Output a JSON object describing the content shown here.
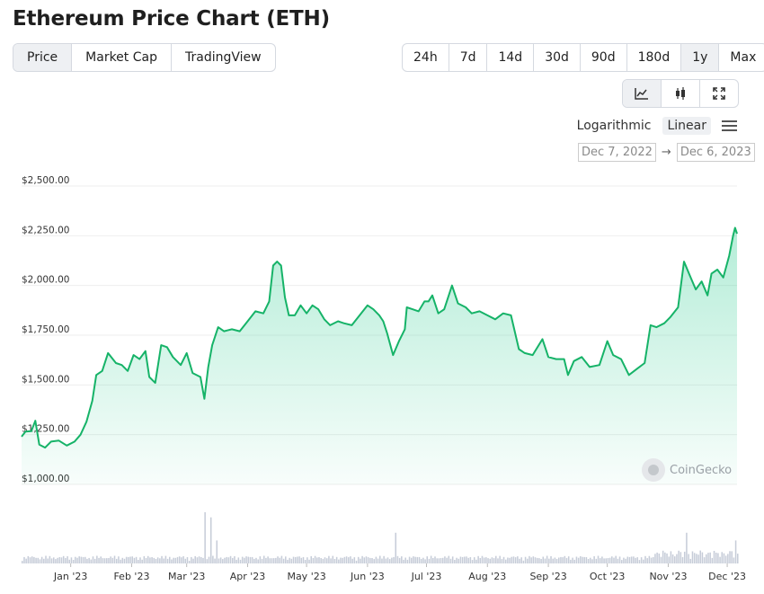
{
  "header": {
    "title": "Ethereum Price Chart (ETH)"
  },
  "view_tabs": [
    {
      "label": "Price",
      "active": true
    },
    {
      "label": "Market Cap",
      "active": false
    },
    {
      "label": "TradingView",
      "active": false
    }
  ],
  "range_tabs": [
    {
      "label": "24h",
      "active": false
    },
    {
      "label": "7d",
      "active": false
    },
    {
      "label": "14d",
      "active": false
    },
    {
      "label": "30d",
      "active": false
    },
    {
      "label": "90d",
      "active": false
    },
    {
      "label": "180d",
      "active": false
    },
    {
      "label": "1y",
      "active": true
    },
    {
      "label": "Max",
      "active": false
    }
  ],
  "chart_type_buttons": [
    {
      "icon": "line-chart-icon",
      "active": true
    },
    {
      "icon": "candlestick-icon",
      "active": false
    },
    {
      "icon": "fullscreen-icon",
      "active": false
    }
  ],
  "scale": {
    "logarithmic_label": "Logarithmic",
    "linear_label": "Linear",
    "selected": "Linear",
    "menu_icon": "hamburger-menu-icon"
  },
  "date_range": {
    "start": "Dec 7, 2022",
    "arrow": "→",
    "end": "Dec 6, 2023"
  },
  "watermark": {
    "text": "CoinGecko",
    "icon": "coingecko-logo-icon"
  },
  "colors": {
    "line": "#16b368",
    "fill": "#16c784",
    "volume": "#c6ccd8",
    "grid": "#eeeeee",
    "active_tab": "#eef0f3"
  },
  "chart_data": {
    "type": "area",
    "title": "",
    "xlabel": "",
    "ylabel": "",
    "ylim": [
      1000,
      2500
    ],
    "yticks": [
      {
        "value": 1000,
        "label": "$1,000.00"
      },
      {
        "value": 1250,
        "label": "$1,250.00"
      },
      {
        "value": 1500,
        "label": "$1,500.00"
      },
      {
        "value": 1750,
        "label": "$1,750.00"
      },
      {
        "value": 2000,
        "label": "$2,000.00"
      },
      {
        "value": 2250,
        "label": "$2,250.00"
      },
      {
        "value": 2500,
        "label": "$2,500.00"
      }
    ],
    "xlim": [
      "2022-12-07",
      "2023-12-06"
    ],
    "xticks": [
      {
        "date": "2023-01-01",
        "label": "Jan '23"
      },
      {
        "date": "2023-02-01",
        "label": "Feb '23"
      },
      {
        "date": "2023-03-01",
        "label": "Mar '23"
      },
      {
        "date": "2023-04-01",
        "label": "Apr '23"
      },
      {
        "date": "2023-05-01",
        "label": "May '23"
      },
      {
        "date": "2023-06-01",
        "label": "Jun '23"
      },
      {
        "date": "2023-07-01",
        "label": "Jul '23"
      },
      {
        "date": "2023-08-01",
        "label": "Aug '23"
      },
      {
        "date": "2023-09-01",
        "label": "Sep '23"
      },
      {
        "date": "2023-10-01",
        "label": "Oct '23"
      },
      {
        "date": "2023-11-01",
        "label": "Nov '23"
      },
      {
        "date": "2023-12-01",
        "label": "Dec '23"
      }
    ],
    "grid": true,
    "series": [
      {
        "values": [
          {
            "date": "2022-12-07",
            "price": 1240
          },
          {
            "date": "2022-12-09",
            "price": 1265
          },
          {
            "date": "2022-12-12",
            "price": 1268
          },
          {
            "date": "2022-12-14",
            "price": 1320
          },
          {
            "date": "2022-12-16",
            "price": 1200
          },
          {
            "date": "2022-12-19",
            "price": 1185
          },
          {
            "date": "2022-12-22",
            "price": 1215
          },
          {
            "date": "2022-12-26",
            "price": 1220
          },
          {
            "date": "2022-12-30",
            "price": 1195
          },
          {
            "date": "2023-01-03",
            "price": 1215
          },
          {
            "date": "2023-01-06",
            "price": 1250
          },
          {
            "date": "2023-01-09",
            "price": 1315
          },
          {
            "date": "2023-01-12",
            "price": 1420
          },
          {
            "date": "2023-01-14",
            "price": 1550
          },
          {
            "date": "2023-01-17",
            "price": 1570
          },
          {
            "date": "2023-01-20",
            "price": 1660
          },
          {
            "date": "2023-01-24",
            "price": 1610
          },
          {
            "date": "2023-01-27",
            "price": 1600
          },
          {
            "date": "2023-01-30",
            "price": 1570
          },
          {
            "date": "2023-02-02",
            "price": 1650
          },
          {
            "date": "2023-02-05",
            "price": 1630
          },
          {
            "date": "2023-02-08",
            "price": 1670
          },
          {
            "date": "2023-02-10",
            "price": 1540
          },
          {
            "date": "2023-02-13",
            "price": 1510
          },
          {
            "date": "2023-02-16",
            "price": 1700
          },
          {
            "date": "2023-02-19",
            "price": 1690
          },
          {
            "date": "2023-02-22",
            "price": 1640
          },
          {
            "date": "2023-02-26",
            "price": 1600
          },
          {
            "date": "2023-03-01",
            "price": 1660
          },
          {
            "date": "2023-03-04",
            "price": 1560
          },
          {
            "date": "2023-03-08",
            "price": 1540
          },
          {
            "date": "2023-03-10",
            "price": 1430
          },
          {
            "date": "2023-03-12",
            "price": 1590
          },
          {
            "date": "2023-03-14",
            "price": 1700
          },
          {
            "date": "2023-03-17",
            "price": 1790
          },
          {
            "date": "2023-03-20",
            "price": 1770
          },
          {
            "date": "2023-03-24",
            "price": 1780
          },
          {
            "date": "2023-03-28",
            "price": 1770
          },
          {
            "date": "2023-04-01",
            "price": 1820
          },
          {
            "date": "2023-04-05",
            "price": 1870
          },
          {
            "date": "2023-04-09",
            "price": 1860
          },
          {
            "date": "2023-04-12",
            "price": 1920
          },
          {
            "date": "2023-04-14",
            "price": 2100
          },
          {
            "date": "2023-04-16",
            "price": 2120
          },
          {
            "date": "2023-04-18",
            "price": 2100
          },
          {
            "date": "2023-04-20",
            "price": 1940
          },
          {
            "date": "2023-04-22",
            "price": 1850
          },
          {
            "date": "2023-04-25",
            "price": 1850
          },
          {
            "date": "2023-04-28",
            "price": 1900
          },
          {
            "date": "2023-05-01",
            "price": 1860
          },
          {
            "date": "2023-05-04",
            "price": 1900
          },
          {
            "date": "2023-05-07",
            "price": 1880
          },
          {
            "date": "2023-05-10",
            "price": 1830
          },
          {
            "date": "2023-05-13",
            "price": 1800
          },
          {
            "date": "2023-05-17",
            "price": 1820
          },
          {
            "date": "2023-05-20",
            "price": 1810
          },
          {
            "date": "2023-05-24",
            "price": 1800
          },
          {
            "date": "2023-05-28",
            "price": 1850
          },
          {
            "date": "2023-06-01",
            "price": 1900
          },
          {
            "date": "2023-06-04",
            "price": 1880
          },
          {
            "date": "2023-06-07",
            "price": 1850
          },
          {
            "date": "2023-06-09",
            "price": 1820
          },
          {
            "date": "2023-06-11",
            "price": 1760
          },
          {
            "date": "2023-06-14",
            "price": 1650
          },
          {
            "date": "2023-06-17",
            "price": 1720
          },
          {
            "date": "2023-06-20",
            "price": 1780
          },
          {
            "date": "2023-06-21",
            "price": 1890
          },
          {
            "date": "2023-06-24",
            "price": 1880
          },
          {
            "date": "2023-06-27",
            "price": 1870
          },
          {
            "date": "2023-06-30",
            "price": 1920
          },
          {
            "date": "2023-07-02",
            "price": 1920
          },
          {
            "date": "2023-07-04",
            "price": 1950
          },
          {
            "date": "2023-07-07",
            "price": 1860
          },
          {
            "date": "2023-07-10",
            "price": 1880
          },
          {
            "date": "2023-07-14",
            "price": 2000
          },
          {
            "date": "2023-07-17",
            "price": 1910
          },
          {
            "date": "2023-07-21",
            "price": 1890
          },
          {
            "date": "2023-07-24",
            "price": 1860
          },
          {
            "date": "2023-07-28",
            "price": 1870
          },
          {
            "date": "2023-08-01",
            "price": 1850
          },
          {
            "date": "2023-08-05",
            "price": 1830
          },
          {
            "date": "2023-08-09",
            "price": 1860
          },
          {
            "date": "2023-08-13",
            "price": 1850
          },
          {
            "date": "2023-08-17",
            "price": 1680
          },
          {
            "date": "2023-08-20",
            "price": 1660
          },
          {
            "date": "2023-08-24",
            "price": 1650
          },
          {
            "date": "2023-08-29",
            "price": 1730
          },
          {
            "date": "2023-09-01",
            "price": 1640
          },
          {
            "date": "2023-09-05",
            "price": 1630
          },
          {
            "date": "2023-09-09",
            "price": 1630
          },
          {
            "date": "2023-09-11",
            "price": 1550
          },
          {
            "date": "2023-09-14",
            "price": 1620
          },
          {
            "date": "2023-09-18",
            "price": 1640
          },
          {
            "date": "2023-09-22",
            "price": 1590
          },
          {
            "date": "2023-09-27",
            "price": 1600
          },
          {
            "date": "2023-10-01",
            "price": 1720
          },
          {
            "date": "2023-10-04",
            "price": 1650
          },
          {
            "date": "2023-10-08",
            "price": 1630
          },
          {
            "date": "2023-10-12",
            "price": 1550
          },
          {
            "date": "2023-10-16",
            "price": 1580
          },
          {
            "date": "2023-10-20",
            "price": 1610
          },
          {
            "date": "2023-10-23",
            "price": 1800
          },
          {
            "date": "2023-10-26",
            "price": 1790
          },
          {
            "date": "2023-10-30",
            "price": 1810
          },
          {
            "date": "2023-11-02",
            "price": 1840
          },
          {
            "date": "2023-11-06",
            "price": 1890
          },
          {
            "date": "2023-11-09",
            "price": 2120
          },
          {
            "date": "2023-11-12",
            "price": 2050
          },
          {
            "date": "2023-11-15",
            "price": 1980
          },
          {
            "date": "2023-11-18",
            "price": 2020
          },
          {
            "date": "2023-11-21",
            "price": 1950
          },
          {
            "date": "2023-11-23",
            "price": 2060
          },
          {
            "date": "2023-11-26",
            "price": 2080
          },
          {
            "date": "2023-11-29",
            "price": 2040
          },
          {
            "date": "2023-12-02",
            "price": 2150
          },
          {
            "date": "2023-12-04",
            "price": 2250
          },
          {
            "date": "2023-12-05",
            "price": 2290
          },
          {
            "date": "2023-12-06",
            "price": 2260
          }
        ]
      }
    ],
    "volume_spikes": [
      {
        "date": "2023-03-10",
        "level": 1.0
      },
      {
        "date": "2023-03-13",
        "level": 0.9
      },
      {
        "date": "2023-03-16",
        "level": 0.45
      },
      {
        "date": "2023-06-15",
        "level": 0.6
      },
      {
        "date": "2023-11-10",
        "level": 0.6
      },
      {
        "date": "2023-12-05",
        "level": 0.45
      }
    ]
  }
}
